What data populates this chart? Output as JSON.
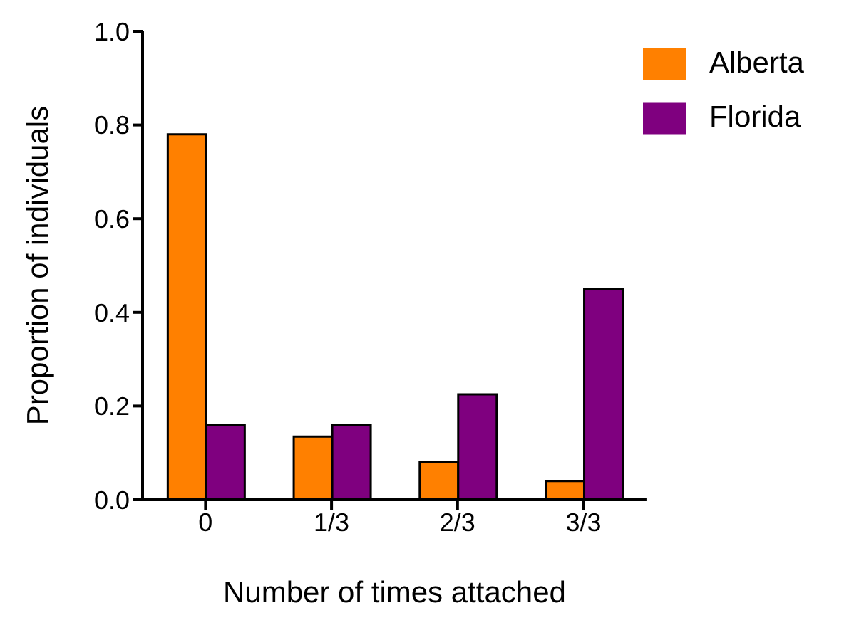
{
  "chart_data": {
    "type": "bar",
    "xlabel": "Number of times attached",
    "ylabel": "Proportion of individuals",
    "categories": [
      "0",
      "1/3",
      "2/3",
      "3/3"
    ],
    "series": [
      {
        "name": "Alberta",
        "color": "#ff8000",
        "values": [
          0.78,
          0.135,
          0.08,
          0.04
        ]
      },
      {
        "name": "Florida",
        "color": "#7f007f",
        "values": [
          0.16,
          0.16,
          0.225,
          0.45
        ]
      }
    ],
    "ylim": [
      0,
      1
    ],
    "yticks": [
      {
        "value": 0,
        "label": "0.0"
      },
      {
        "value": 0.2,
        "label": "0.2"
      },
      {
        "value": 0.4,
        "label": "0.4"
      },
      {
        "value": 0.6,
        "label": "0.6"
      },
      {
        "value": 0.8,
        "label": "0.8"
      },
      {
        "value": 1,
        "label": "1.0"
      }
    ],
    "grid": false,
    "legend": "top right"
  }
}
